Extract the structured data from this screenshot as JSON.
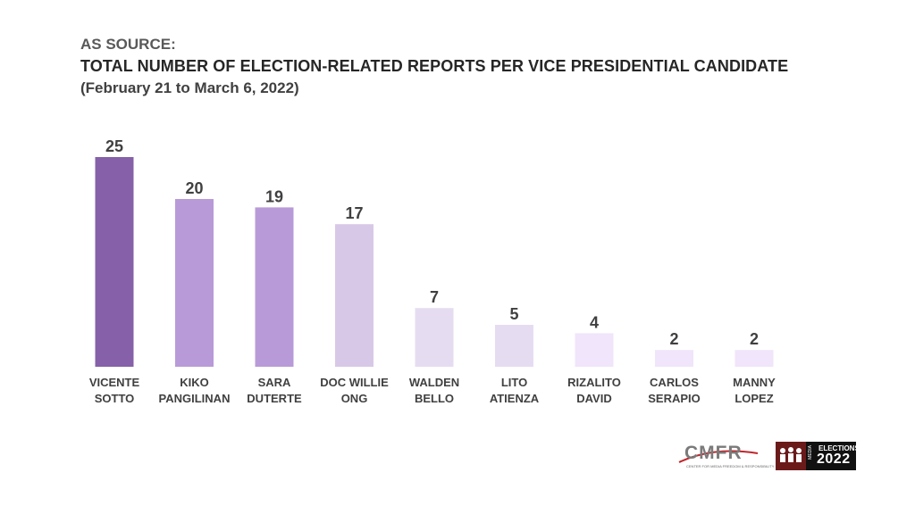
{
  "header": {
    "supertitle": "AS SOURCE:",
    "title": "TOTAL NUMBER OF  ELECTION-RELATED REPORTS PER VICE PRESIDENTIAL CANDIDATE",
    "subtitle": "(February 21 to March 6, 2022)"
  },
  "chart_data": {
    "type": "bar",
    "categories": [
      [
        "VICENTE",
        "SOTTO"
      ],
      [
        "KIKO",
        "PANGILINAN"
      ],
      [
        "SARA",
        "DUTERTE"
      ],
      [
        "DOC WILLIE",
        "ONG"
      ],
      [
        "WALDEN",
        "BELLO"
      ],
      [
        "LITO",
        "ATIENZA"
      ],
      [
        "RIZALITO",
        "DAVID"
      ],
      [
        "CARLOS",
        "SERAPIO"
      ],
      [
        "MANNY",
        "LOPEZ"
      ]
    ],
    "values": [
      25,
      20,
      19,
      17,
      7,
      5,
      4,
      2,
      2
    ],
    "bar_colors": [
      "#8660a8",
      "#b99ad8",
      "#b99ad8",
      "#d8c8e8",
      "#e6dcf2",
      "#e6dcf2",
      "#f0e5fa",
      "#f0e5fa",
      "#f0e5fa"
    ],
    "ylim": [
      0,
      25
    ],
    "data_labels": true,
    "grid": false,
    "legend": "none"
  },
  "logos": {
    "cmfr": {
      "text": "CMFR",
      "sub": "CENTER FOR MEDIA FREEDOM & RESPONSIBILITY",
      "accent": "#c0262c"
    },
    "media_elections": {
      "media": "MEDIA",
      "elections": "ELECTIONS",
      "year": "2022",
      "accent": "#6b1a1a"
    }
  }
}
